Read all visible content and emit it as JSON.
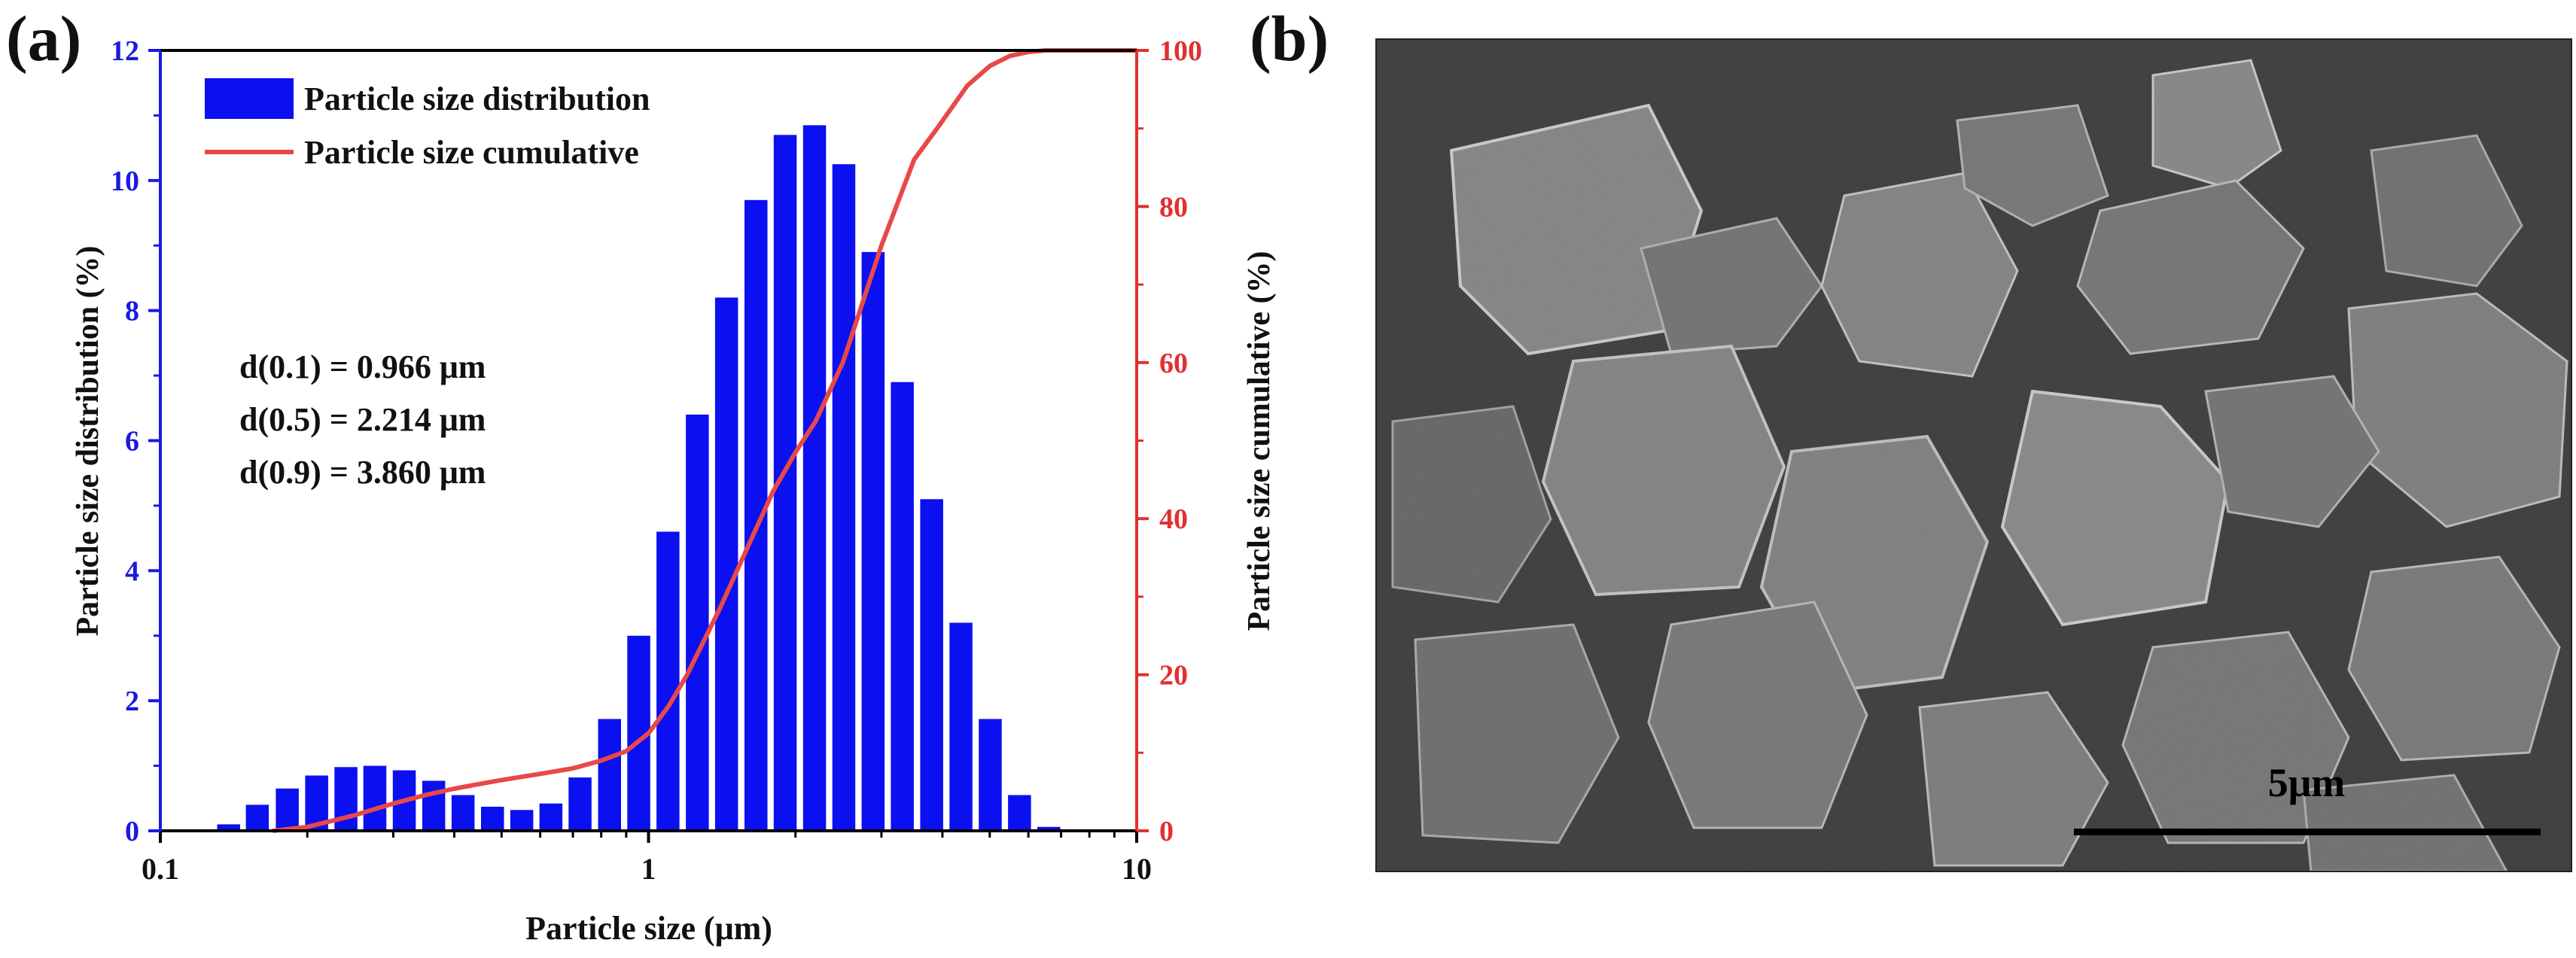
{
  "figure": {
    "panel_a_label": "(a)",
    "panel_b_label": "(b)"
  },
  "chart_data": {
    "type": "bar",
    "x_scale": "log",
    "xlabel": "Particle size (μm)",
    "ylabel_left": "Particle size distribution (%)",
    "ylabel_right": "Particle size cumulative (%)",
    "xlim": [
      0.1,
      10
    ],
    "ylim_left": [
      0,
      12
    ],
    "ylim_right": [
      0,
      100
    ],
    "x_ticks": [
      0.1,
      1,
      10
    ],
    "x_tick_labels": [
      "0.1",
      "1",
      "10"
    ],
    "y_left_ticks": [
      0,
      2,
      4,
      6,
      8,
      10,
      12
    ],
    "y_right_ticks": [
      0,
      20,
      40,
      60,
      80,
      100
    ],
    "legend_position": "top-left",
    "grid": false,
    "colors": {
      "bars": "#0a10f0",
      "curve": "#e84848",
      "left_axis": "#1a1ae0",
      "right_axis": "#e03030"
    },
    "legend": [
      {
        "label": "Particle size distribution",
        "kind": "bar"
      },
      {
        "label": "Particle size cumulative",
        "kind": "line"
      }
    ],
    "annotations": [
      "d(0.1) = 0.966 μm",
      "d(0.5) = 2.214 μm",
      "d(0.9) = 3.860 μm"
    ],
    "series": [
      {
        "name": "Particle size distribution",
        "axis": "left",
        "type": "bar",
        "x": [
          0.138,
          0.158,
          0.182,
          0.209,
          0.24,
          0.275,
          0.316,
          0.363,
          0.417,
          0.479,
          0.55,
          0.631,
          0.724,
          0.832,
          0.955,
          1.096,
          1.259,
          1.445,
          1.66,
          1.905,
          2.188,
          2.512,
          2.884,
          3.311,
          3.802,
          4.365,
          5.012,
          5.754,
          6.607
        ],
        "values": [
          0.1,
          0.4,
          0.65,
          0.85,
          0.98,
          1.0,
          0.93,
          0.77,
          0.55,
          0.37,
          0.32,
          0.42,
          0.82,
          1.72,
          3.0,
          4.6,
          6.4,
          8.2,
          9.7,
          10.7,
          10.85,
          10.25,
          8.9,
          6.9,
          5.1,
          3.2,
          1.72,
          0.55,
          0.06
        ]
      },
      {
        "name": "Particle size cumulative",
        "axis": "right",
        "type": "line",
        "x": [
          0.17,
          0.2,
          0.25,
          0.3,
          0.35,
          0.4,
          0.45,
          0.5,
          0.6,
          0.7,
          0.8,
          0.9,
          1.0,
          1.1,
          1.2,
          1.4,
          1.6,
          1.8,
          2.0,
          2.2,
          2.5,
          3.0,
          3.5,
          3.9,
          4.5,
          5.0,
          5.5,
          6.0,
          6.5,
          7.0,
          10.0
        ],
        "values": [
          0.0,
          0.5,
          2.0,
          3.5,
          4.6,
          5.4,
          6.0,
          6.5,
          7.3,
          8.0,
          9.0,
          10.2,
          12.5,
          16.0,
          20.0,
          28.5,
          36.5,
          43.5,
          48.5,
          52.5,
          60.0,
          75.0,
          86.0,
          90.0,
          95.5,
          98.0,
          99.3,
          99.8,
          100.0,
          100.0,
          100.0
        ]
      }
    ]
  },
  "micrograph": {
    "scale_bar_label": "5μm"
  }
}
